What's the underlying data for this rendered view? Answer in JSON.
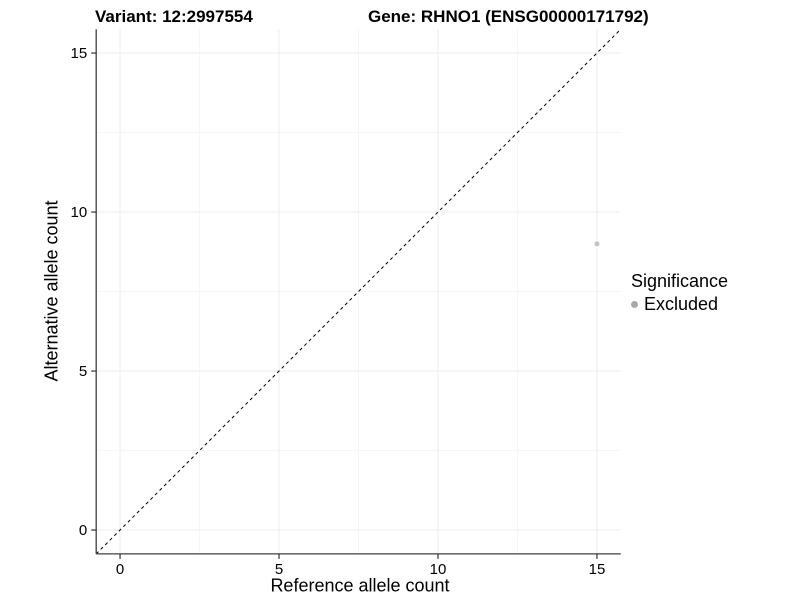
{
  "colors": {
    "background": "#ffffff",
    "axis_line": "#404040",
    "tick_mark": "#333333",
    "grid_major": "#ececec",
    "grid_minor": "#f6f6f6",
    "text": "#000000"
  },
  "chart_data": {
    "type": "scatter",
    "titles": {
      "left": "Variant: 12:2997554",
      "right": "Gene: RHNO1 (ENSG00000171792)"
    },
    "xlabel": "Reference allele count",
    "ylabel": "Alternative allele count",
    "xlim": [
      -0.75,
      15.75
    ],
    "ylim": [
      -0.75,
      15.75
    ],
    "xticks": [
      0,
      5,
      10,
      15
    ],
    "xtick_labels": [
      "0",
      "5",
      "10",
      "15"
    ],
    "yticks": [
      0,
      5,
      10,
      15
    ],
    "ytick_labels": [
      "0",
      "5",
      "10",
      "15"
    ],
    "minor_ticks": [
      2.5,
      7.5,
      12.5
    ],
    "grid": true,
    "series": [
      {
        "name": "Excluded",
        "points": [
          {
            "x": 15,
            "y": 9
          }
        ],
        "color": "#c4c4c4"
      }
    ],
    "identity_line": {
      "style": "dashed",
      "slope": 1,
      "intercept": 0,
      "color": "#000000"
    },
    "legend": {
      "title": "Significance",
      "position": "right",
      "items": [
        {
          "label": "Excluded",
          "marker": "circle",
          "color": "#a9a9a9"
        }
      ]
    }
  }
}
